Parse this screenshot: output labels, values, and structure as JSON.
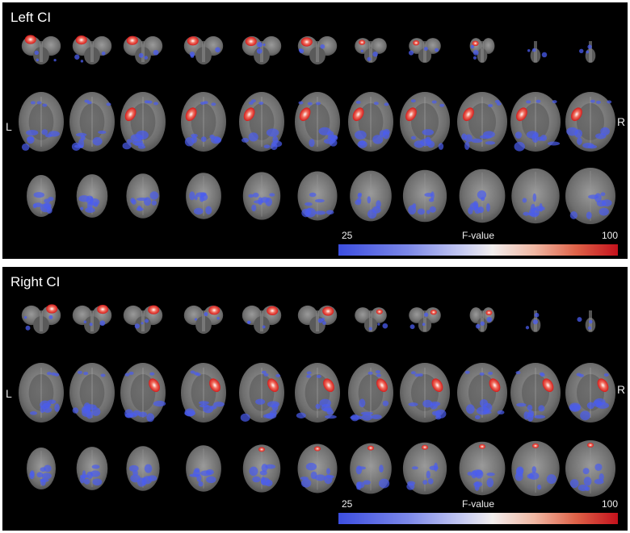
{
  "panels": [
    {
      "id": "left-ci",
      "title": "Left CI",
      "left_label": "L",
      "right_label": "R",
      "hemisphere": "left",
      "colorbar": {
        "min_label": "25",
        "title": "F-value",
        "max_label": "100"
      }
    },
    {
      "id": "right-ci",
      "title": "Right CI",
      "left_label": "L",
      "right_label": "R",
      "hemisphere": "right",
      "colorbar": {
        "min_label": "25",
        "title": "F-value",
        "max_label": "100"
      }
    }
  ],
  "colors": {
    "background": "#000000",
    "brain_tissue": "#6e6e6e",
    "low_activation": "#4a5cf0",
    "high_activation": "#d41a1a",
    "colorbar_low": "#3c4ee0",
    "colorbar_high": "#c4121c"
  }
}
